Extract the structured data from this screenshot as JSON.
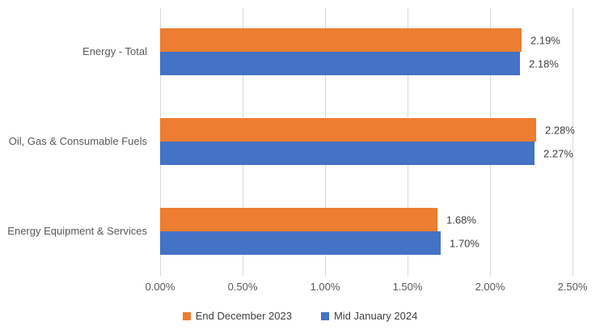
{
  "chart_data": {
    "type": "bar",
    "orientation": "horizontal",
    "title": "",
    "categories": [
      "Energy - Total",
      "Oil, Gas & Consumable Fuels",
      "Energy Equipment & Services"
    ],
    "series": [
      {
        "name": "End December 2023",
        "color": "#ED7D31",
        "values": [
          2.19,
          2.28,
          1.68
        ],
        "data_labels": [
          "2.19%",
          "2.28%",
          "1.68%"
        ]
      },
      {
        "name": "Mid January 2024",
        "color": "#4472C4",
        "values": [
          2.18,
          2.27,
          1.7
        ],
        "data_labels": [
          "2.18%",
          "2.27%",
          "1.70%"
        ]
      }
    ],
    "x_axis": {
      "min": 0,
      "max": 2.5,
      "tick_step": 0.5,
      "tick_labels": [
        "0.00%",
        "0.50%",
        "1.00%",
        "1.50%",
        "2.00%",
        "2.50%"
      ]
    },
    "legend": {
      "position": "bottom",
      "entries": [
        "End December 2023",
        "Mid January 2024"
      ]
    },
    "grid": true,
    "colors": {
      "gridline": "#D9D9D9",
      "axis_text": "#595959",
      "data_label_text": "#404040",
      "legend_text": "#404040",
      "background": "#FFFFFF"
    },
    "clipped_edge_text": ")"
  }
}
